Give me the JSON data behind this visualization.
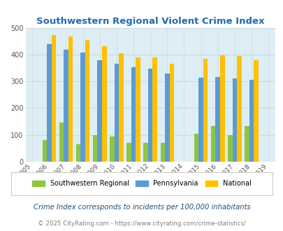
{
  "title": "Southwestern Regional Violent Crime Index",
  "years": [
    2005,
    2006,
    2007,
    2008,
    2009,
    2010,
    2011,
    2012,
    2013,
    2014,
    2015,
    2016,
    2017,
    2018,
    2019
  ],
  "southwestern": [
    null,
    80,
    145,
    65,
    100,
    95,
    70,
    70,
    70,
    null,
    105,
    132,
    100,
    132,
    null
  ],
  "pennsylvania": [
    null,
    440,
    418,
    408,
    380,
    367,
    353,
    348,
    328,
    null,
    313,
    315,
    311,
    305,
    null
  ],
  "national": [
    null,
    474,
    467,
    455,
    432,
    405,
    389,
    388,
    367,
    null,
    383,
    397,
    394,
    380,
    null
  ],
  "sw_color": "#8dc63f",
  "pa_color": "#5b9bd5",
  "nat_color": "#ffc000",
  "bg_color": "#deeef4",
  "title_color": "#1f6bb0",
  "ylim": [
    0,
    500
  ],
  "yticks": [
    0,
    100,
    200,
    300,
    400,
    500
  ],
  "bar_width": 0.27,
  "legend_labels": [
    "Southwestern Regional",
    "Pennsylvania",
    "National"
  ],
  "footnote1": "Crime Index corresponds to incidents per 100,000 inhabitants",
  "footnote2": "© 2025 CityRating.com - https://www.cityrating.com/crime-statistics/",
  "footnote1_color": "#1f4e79",
  "footnote2_color": "#808080",
  "grid_color": "#c8dce0"
}
